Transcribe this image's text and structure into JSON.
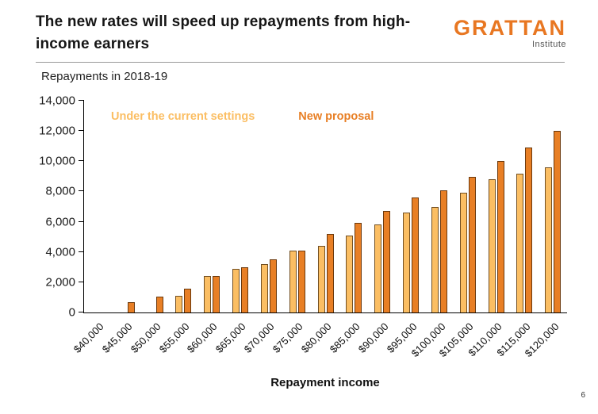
{
  "header": {
    "title_line1": "The new rates will speed up repayments from high-",
    "title_line2": "income earners",
    "logo_text": "GRATTAN",
    "logo_sub": "Institute"
  },
  "chart_data": {
    "type": "bar",
    "title": "Repayments in 2018-19",
    "xlabel": "Repayment income",
    "ylabel": "",
    "ylim": [
      0,
      14000
    ],
    "ytick_step": 2000,
    "yticks": [
      "0",
      "2,000",
      "4,000",
      "6,000",
      "8,000",
      "10,000",
      "12,000",
      "14,000"
    ],
    "grid": false,
    "legend_position": "top-left-inside",
    "categories": [
      "$40,000",
      "$45,000",
      "$50,000",
      "$55,000",
      "$60,000",
      "$65,000",
      "$70,000",
      "$75,000",
      "$80,000",
      "$85,000",
      "$90,000",
      "$95,000",
      "$100,000",
      "$105,000",
      "$110,000",
      "$115,000",
      "$120,000"
    ],
    "series": [
      {
        "name": "Under the current settings",
        "color": "#FBBE63",
        "values": [
          0,
          0,
          0,
          1100,
          2400,
          2900,
          3200,
          4100,
          4400,
          5100,
          5800,
          6600,
          7000,
          7900,
          8800,
          9200,
          9600
        ]
      },
      {
        "name": "New proposal",
        "color": "#E87F25",
        "values": [
          0,
          700,
          1050,
          1600,
          2400,
          3000,
          3500,
          4100,
          5200,
          5900,
          6700,
          7600,
          8050,
          8950,
          10000,
          10900,
          12000
        ]
      }
    ]
  },
  "footer": {
    "page_number": "6"
  }
}
